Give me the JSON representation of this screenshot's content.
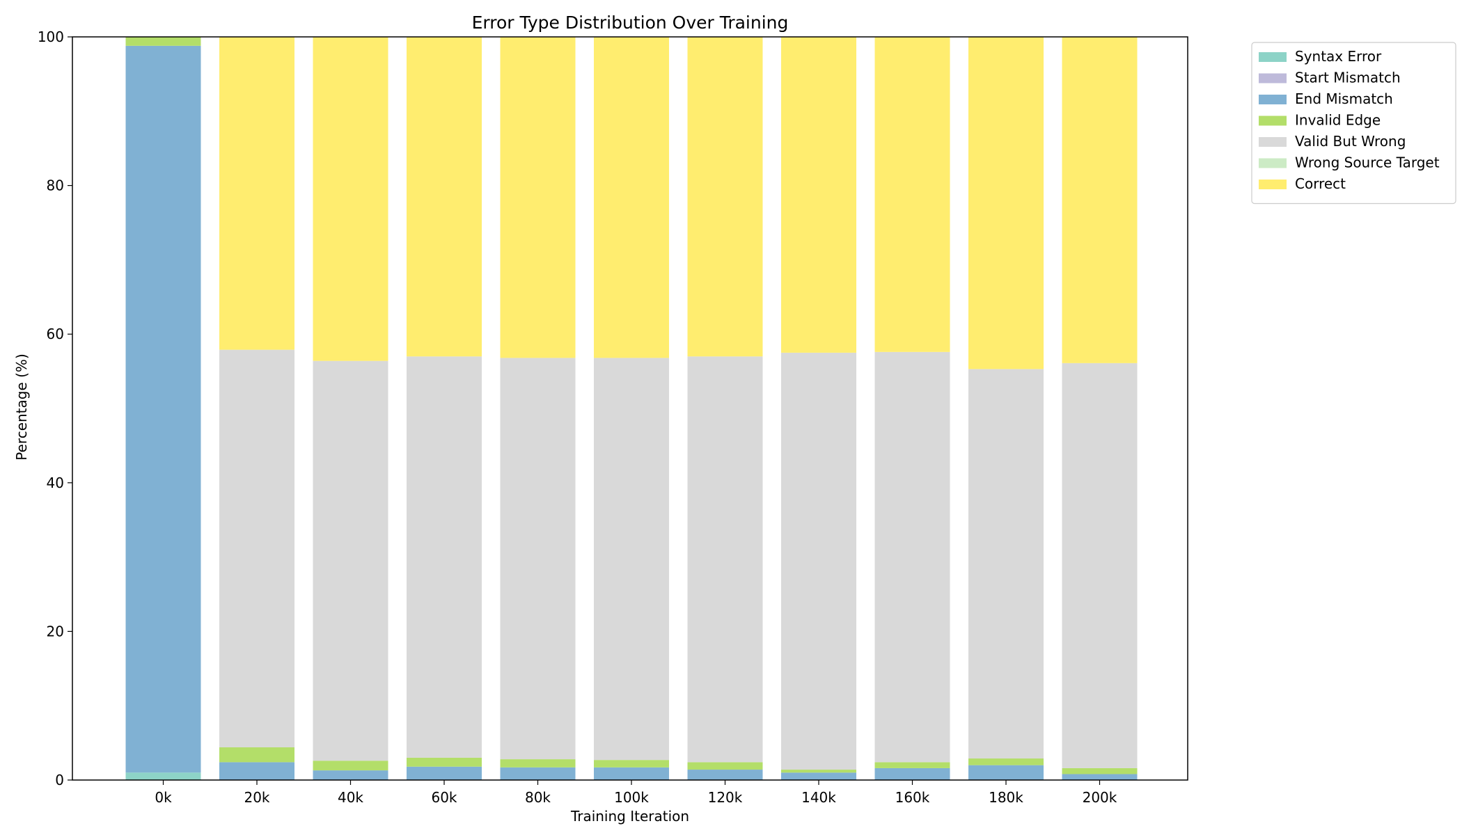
{
  "chart_data": {
    "type": "bar",
    "stacked": true,
    "title": "Error Type Distribution Over Training",
    "xlabel": "Training Iteration",
    "ylabel": "Percentage (%)",
    "ylim": [
      0,
      100
    ],
    "yticks": [
      0,
      20,
      40,
      60,
      80,
      100
    ],
    "grid": false,
    "legend_position": "outside-top-right",
    "categories": [
      "0k",
      "20k",
      "40k",
      "60k",
      "80k",
      "100k",
      "120k",
      "140k",
      "160k",
      "180k",
      "200k"
    ],
    "series": [
      {
        "name": "Syntax Error",
        "color": "#8dd3c7",
        "values": [
          1.0,
          0.0,
          0.0,
          0.0,
          0.0,
          0.0,
          0.0,
          0.0,
          0.0,
          0.0,
          0.0
        ]
      },
      {
        "name": "Start Mismatch",
        "color": "#bebada",
        "values": [
          0.0,
          0.0,
          0.0,
          0.0,
          0.0,
          0.0,
          0.0,
          0.0,
          0.0,
          0.0,
          0.0
        ]
      },
      {
        "name": "End Mismatch",
        "color": "#80b1d3",
        "values": [
          97.8,
          2.4,
          1.3,
          1.8,
          1.7,
          1.7,
          1.4,
          1.0,
          1.6,
          2.0,
          0.8
        ]
      },
      {
        "name": "Invalid Edge",
        "color": "#b3de69",
        "values": [
          1.2,
          2.0,
          1.3,
          1.2,
          1.1,
          1.0,
          1.0,
          0.4,
          0.8,
          0.9,
          0.8
        ]
      },
      {
        "name": "Valid But Wrong",
        "color": "#d9d9d9",
        "values": [
          0.0,
          53.5,
          53.8,
          54.0,
          54.0,
          54.1,
          54.6,
          56.1,
          55.2,
          52.4,
          54.5
        ]
      },
      {
        "name": "Wrong Source Target",
        "color": "#ccebc5",
        "values": [
          0.0,
          0.0,
          0.0,
          0.0,
          0.0,
          0.0,
          0.0,
          0.0,
          0.0,
          0.0,
          0.0
        ]
      },
      {
        "name": "Correct",
        "color": "#ffed6f",
        "values": [
          0.0,
          42.1,
          43.6,
          43.0,
          43.2,
          43.2,
          43.0,
          42.5,
          42.4,
          44.7,
          43.9
        ]
      }
    ]
  }
}
